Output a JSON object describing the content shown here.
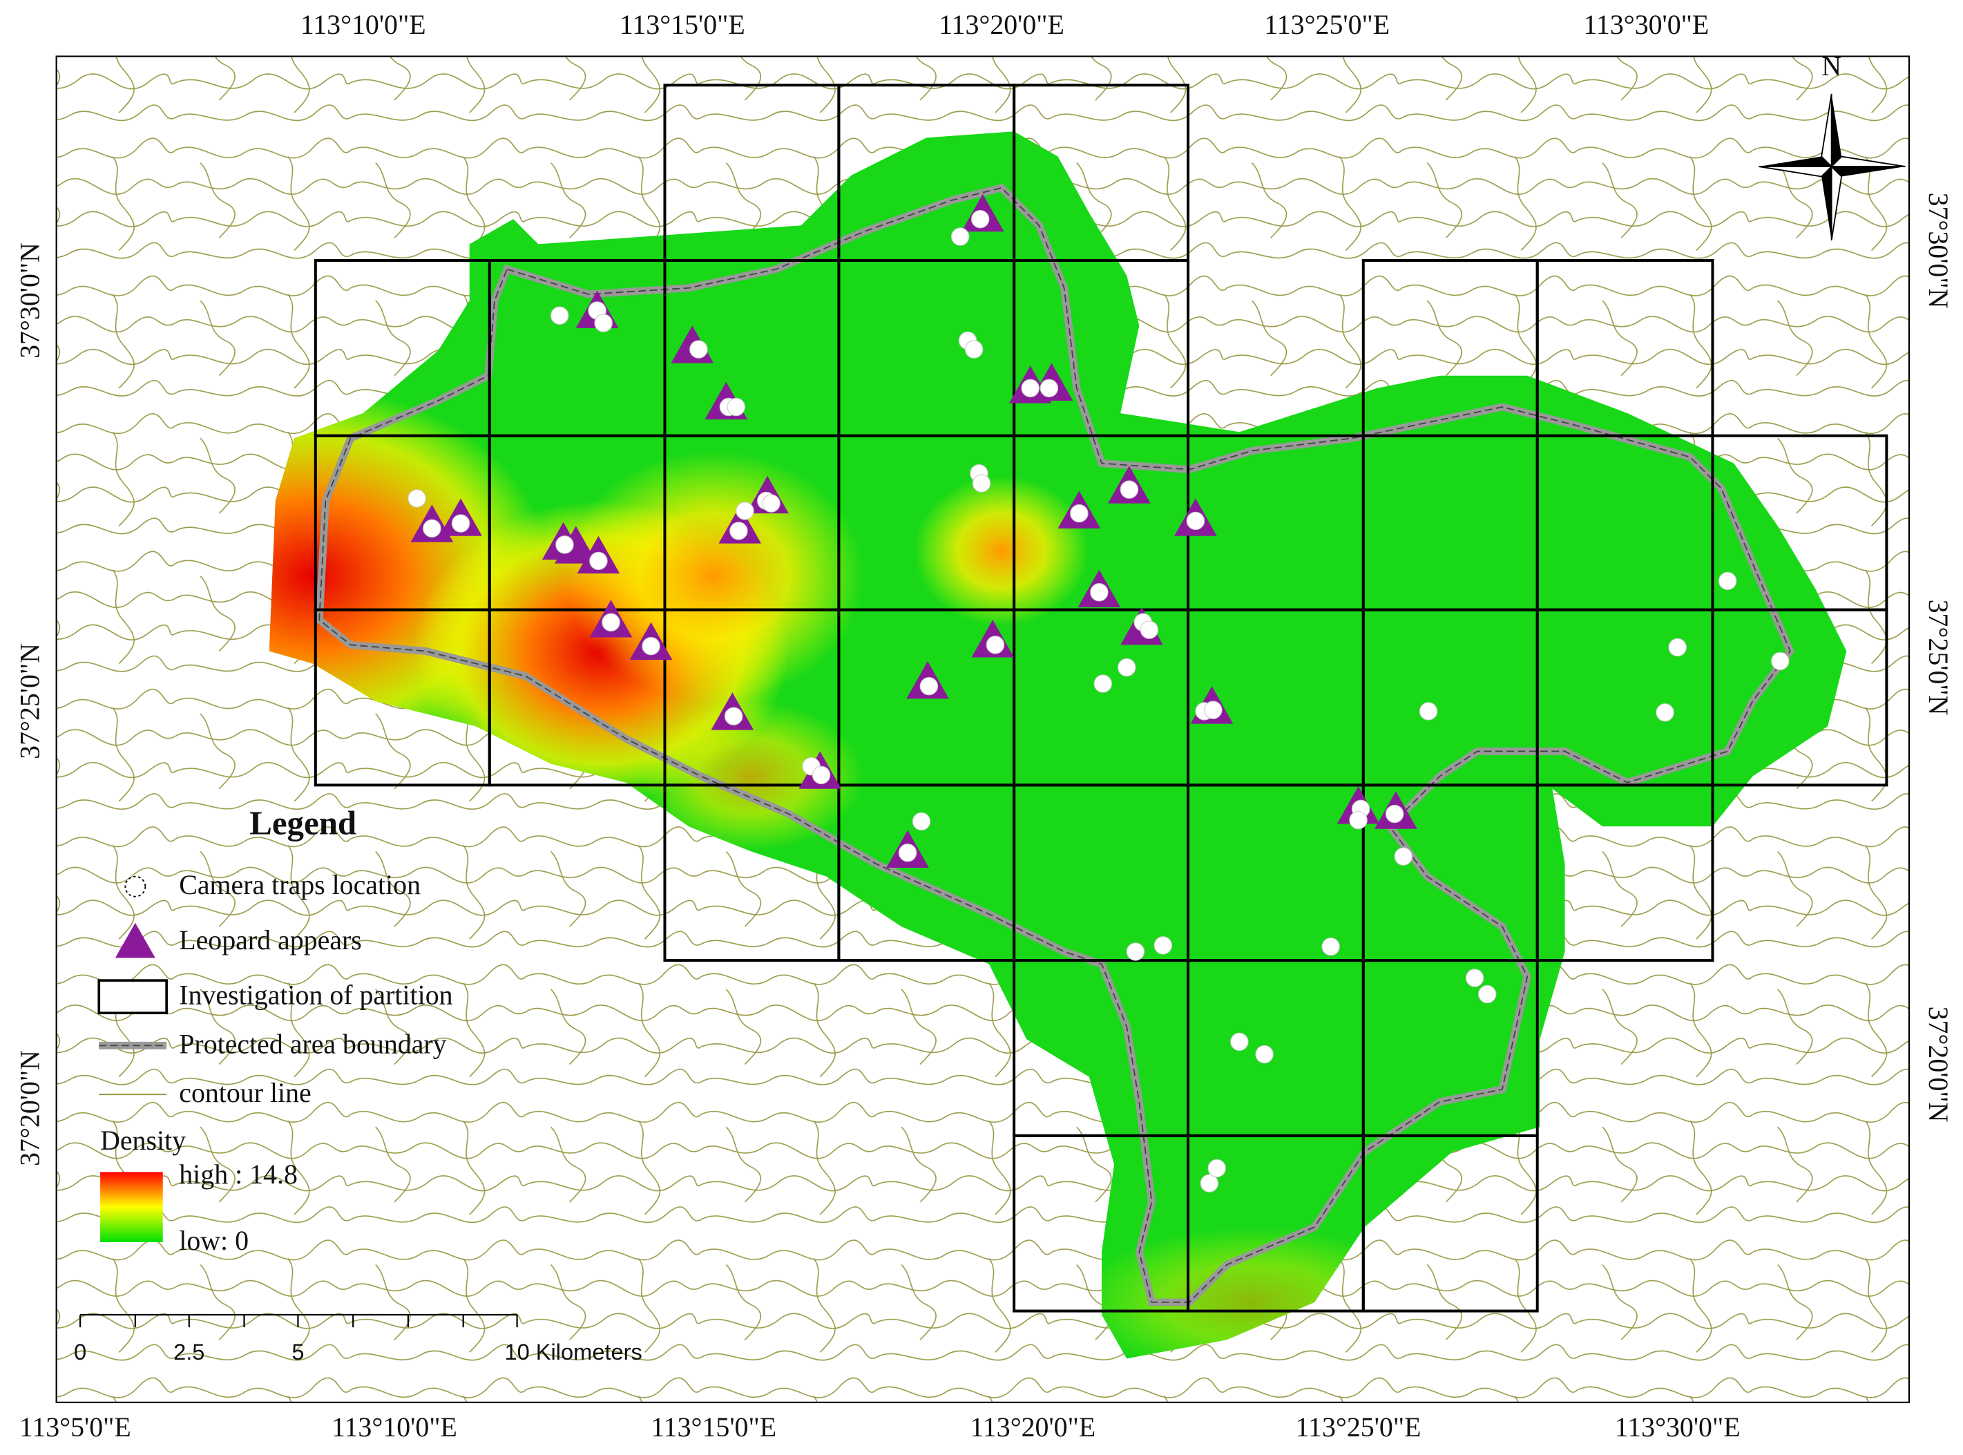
{
  "axes": {
    "top": [
      "113°10'0\"E",
      "113°15'0\"E",
      "113°20'0\"E",
      "113°25'0\"E",
      "113°30'0\"E"
    ],
    "bottom": [
      "113°5'0\"E",
      "113°10'0\"E",
      "113°15'0\"E",
      "113°20'0\"E",
      "113°25'0\"E",
      "113°30'0\"E"
    ],
    "left": [
      "37°30'0\"N",
      "37°25'0\"N",
      "37°20'0\"N"
    ],
    "right": [
      "37°30'0\"N",
      "37°25'0\"N",
      "37°20'0\"N"
    ]
  },
  "north": "N",
  "legend": {
    "title": "Legend",
    "items": [
      "Camera traps location",
      "Leopard appears",
      "Investigation of partition",
      "Protected area boundary",
      "contour line"
    ],
    "density": {
      "title": "Density",
      "high": "high : 14.8",
      "low": "low: 0"
    }
  },
  "scale_bar": {
    "labels": [
      "0",
      "2.5",
      "5",
      "10 Kilometers"
    ]
  }
}
